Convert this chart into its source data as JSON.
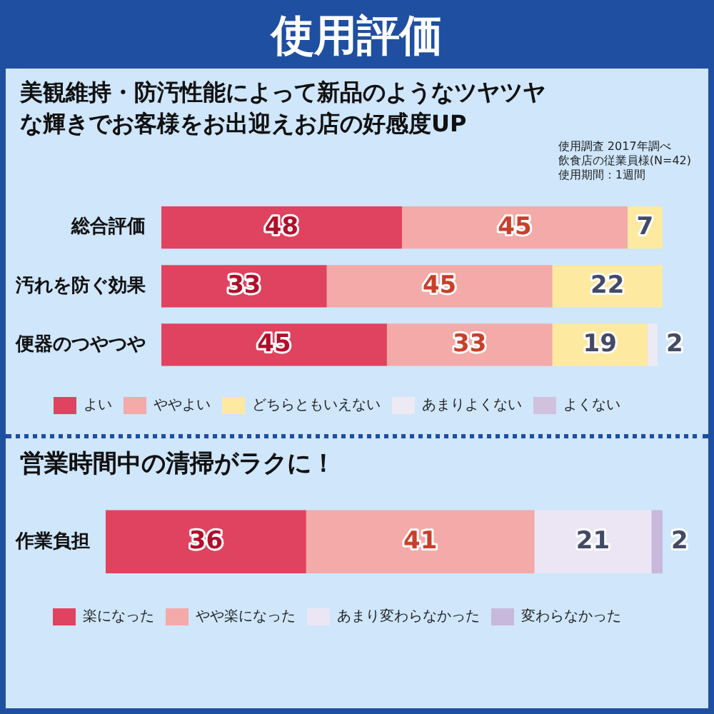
{
  "chart_data": [
    {
      "type": "bar",
      "title": "使用評価",
      "subtitle": "美観維持・防汚性能によって新品のようなツヤツヤな輝きでお客様をお出迎えお店の好感度UP",
      "annotations": [
        "使用調査 2017年調べ",
        "飲食店の従業員様(N=42)",
        "使用期間：1週間"
      ],
      "orientation": "horizontal",
      "stacked": true,
      "categories": [
        "総合評価",
        "汚れを防ぐ効果",
        "便器のつやつや"
      ],
      "series": [
        {
          "name": "よい",
          "color": "#e0435f",
          "values": [
            48,
            33,
            45
          ]
        },
        {
          "name": "ややよい",
          "color": "#f4aaa8",
          "values": [
            45,
            45,
            33
          ]
        },
        {
          "name": "どちらともいえない",
          "color": "#fde9a0",
          "values": [
            7,
            22,
            19
          ]
        },
        {
          "name": "あまりよくない",
          "color": "#eeeaf4",
          "values": [
            null,
            null,
            2
          ]
        },
        {
          "name": "よくない",
          "color": "#d0c2de",
          "values": [
            null,
            null,
            null
          ]
        }
      ],
      "tick_labels": "y",
      "legend": "bottom",
      "data_labels": true
    },
    {
      "type": "bar",
      "title": "営業時間中の清掃がラクに！",
      "orientation": "horizontal",
      "stacked": true,
      "categories": [
        "作業負担"
      ],
      "series": [
        {
          "name": "楽になった",
          "color": "#e0435f",
          "values": [
            36
          ]
        },
        {
          "name": "やや楽になった",
          "color": "#f4aaa8",
          "values": [
            41
          ]
        },
        {
          "name": "あまり変わらなかった",
          "color": "#ece6f4",
          "values": [
            21
          ]
        },
        {
          "name": "変わらなかった",
          "color": "#c8b8dc",
          "values": [
            2
          ]
        }
      ],
      "tick_labels": "y",
      "legend": "bottom",
      "data_labels": true
    }
  ]
}
